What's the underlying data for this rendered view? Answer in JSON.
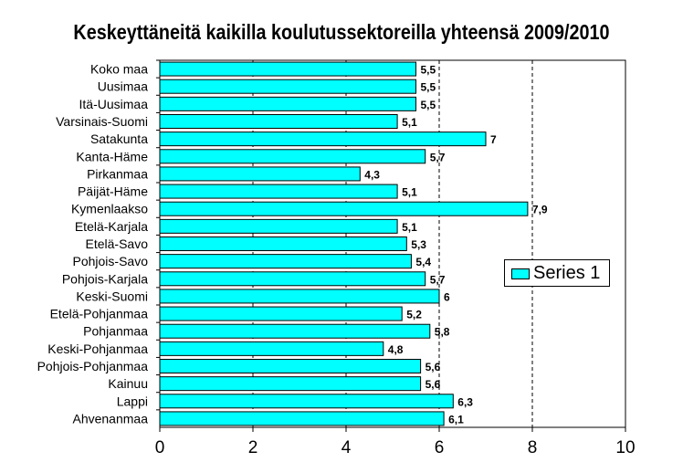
{
  "chart_data": {
    "type": "bar",
    "orientation": "horizontal",
    "title": "Keskeyttäneitä kaikilla koulutussektoreilla yhteensä 2009/2010",
    "xlabel": "",
    "ylabel": "",
    "categories": [
      "Koko maa",
      "Uusimaa",
      "Itä-Uusimaa",
      "Varsinais-Suomi",
      "Satakunta",
      "Kanta-Häme",
      "Pirkanmaa",
      "Päijät-Häme",
      "Kymenlaakso",
      "Etelä-Karjala",
      "Etelä-Savo",
      "Pohjois-Savo",
      "Pohjois-Karjala",
      "Keski-Suomi",
      "Etelä-Pohjanmaa",
      "Pohjanmaa",
      "Keski-Pohjanmaa",
      "Pohjois-Pohjanmaa",
      "Kainuu",
      "Lappi",
      "Ahvenanmaa"
    ],
    "values": [
      5.5,
      5.5,
      5.5,
      5.1,
      7,
      5.7,
      4.3,
      5.1,
      7.9,
      5.1,
      5.3,
      5.4,
      5.7,
      6,
      5.2,
      5.8,
      4.8,
      5.6,
      5.6,
      6.3,
      6.1
    ],
    "value_labels": [
      "5,5",
      "5,5",
      "5,5",
      "5,1",
      "7",
      "5,7",
      "4,3",
      "5,1",
      "7,9",
      "5,1",
      "5,3",
      "5,4",
      "5,7",
      "6",
      "5,2",
      "5,8",
      "4,8",
      "5,6",
      "5,6",
      "6,3",
      "6,1"
    ],
    "series": [
      {
        "name": "Series 1",
        "color": "#00ffff"
      }
    ],
    "xlim": [
      0,
      10
    ],
    "ticks": [
      "0",
      "2",
      "4",
      "6",
      "8",
      "10"
    ],
    "gridlines": "dashed-vertical",
    "legend_position": "right"
  }
}
